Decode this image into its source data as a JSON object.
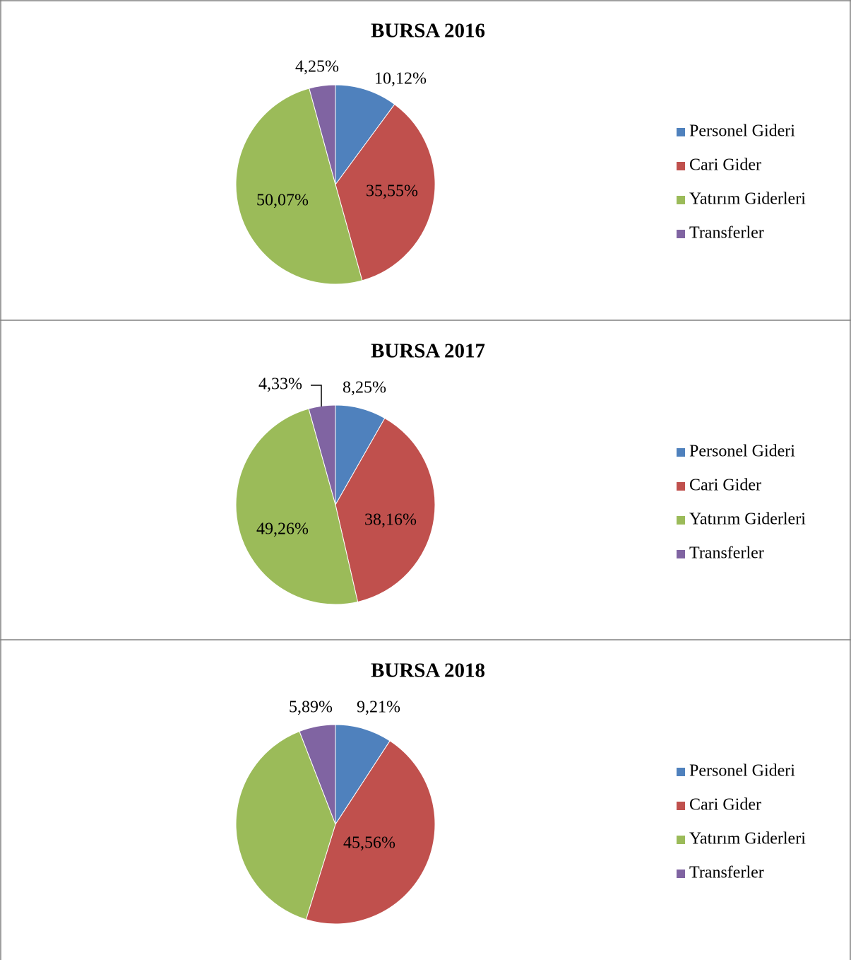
{
  "chart_data": [
    {
      "type": "pie",
      "title": "BURSA 2016",
      "categories": [
        "Personel Gideri",
        "Cari Gider",
        "Yatırım Giderleri",
        "Transferler"
      ],
      "values": [
        10.12,
        35.55,
        50.07,
        4.25
      ],
      "value_labels": [
        "10,12%",
        "35,55%",
        "50,07%",
        "4,25%"
      ],
      "colors": [
        "#4f81bd",
        "#c0504d",
        "#9bbb59",
        "#8064a2"
      ]
    },
    {
      "type": "pie",
      "title": "BURSA 2017",
      "categories": [
        "Personel Gideri",
        "Cari Gider",
        "Yatırım Giderleri",
        "Transferler"
      ],
      "values": [
        8.25,
        38.16,
        49.26,
        4.33
      ],
      "value_labels": [
        "8,25%",
        "38,16%",
        "49,26%",
        "4,33%"
      ],
      "colors": [
        "#4f81bd",
        "#c0504d",
        "#9bbb59",
        "#8064a2"
      ]
    },
    {
      "type": "pie",
      "title": "BURSA 2018",
      "categories": [
        "Personel Gideri",
        "Cari Gider",
        "Yatırım Giderleri",
        "Transferler"
      ],
      "values": [
        9.21,
        45.56,
        39.34,
        5.89
      ],
      "value_labels": [
        "9,21%",
        "45,56%",
        null,
        "5,89%"
      ],
      "colors": [
        "#4f81bd",
        "#c0504d",
        "#9bbb59",
        "#8064a2"
      ]
    }
  ]
}
